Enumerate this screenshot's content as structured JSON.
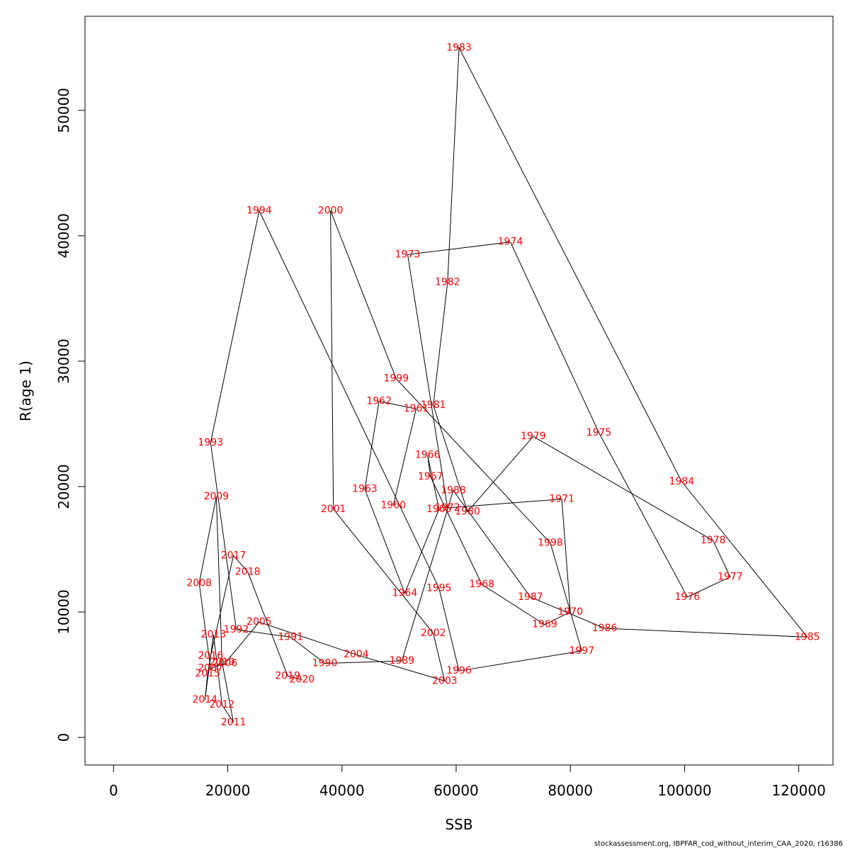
{
  "chart_data": {
    "type": "line",
    "title": "",
    "xlabel": "SSB",
    "ylabel": "R(age 1)",
    "xlim": [
      -5000,
      126000
    ],
    "ylim": [
      -2200,
      57500
    ],
    "xticks": [
      0,
      20000,
      40000,
      60000,
      80000,
      100000,
      120000
    ],
    "yticks": [
      0,
      10000,
      20000,
      30000,
      40000,
      50000
    ],
    "xtick_labels": [
      "0",
      "20000",
      "40000",
      "60000",
      "80000",
      "100000",
      "120000"
    ],
    "ytick_labels": [
      "0",
      "10000",
      "20000",
      "30000",
      "40000",
      "50000"
    ],
    "grid": false,
    "line_color": "#000000",
    "label_color": "#ff0000",
    "points": [
      {
        "year": "1960",
        "x": 49000,
        "y": 18500
      },
      {
        "year": "1961",
        "x": 53000,
        "y": 26200
      },
      {
        "year": "1962",
        "x": 46500,
        "y": 26800
      },
      {
        "year": "1963",
        "x": 44000,
        "y": 19800
      },
      {
        "year": "1964",
        "x": 51000,
        "y": 11500
      },
      {
        "year": "1965",
        "x": 57000,
        "y": 18200
      },
      {
        "year": "1966",
        "x": 55000,
        "y": 22500
      },
      {
        "year": "1967",
        "x": 55500,
        "y": 20800
      },
      {
        "year": "1968",
        "x": 64500,
        "y": 12200
      },
      {
        "year": "1969",
        "x": 75500,
        "y": 9000
      },
      {
        "year": "1970",
        "x": 80000,
        "y": 10000
      },
      {
        "year": "1971",
        "x": 78500,
        "y": 19000
      },
      {
        "year": "1972",
        "x": 58500,
        "y": 18300
      },
      {
        "year": "1973",
        "x": 51500,
        "y": 38500
      },
      {
        "year": "1974",
        "x": 69500,
        "y": 39500
      },
      {
        "year": "1975",
        "x": 85000,
        "y": 24300
      },
      {
        "year": "1976",
        "x": 100500,
        "y": 11200
      },
      {
        "year": "1977",
        "x": 108000,
        "y": 12800
      },
      {
        "year": "1978",
        "x": 105000,
        "y": 15700
      },
      {
        "year": "1979",
        "x": 73500,
        "y": 24000
      },
      {
        "year": "1980",
        "x": 62000,
        "y": 18000
      },
      {
        "year": "1981",
        "x": 56000,
        "y": 26500
      },
      {
        "year": "1982",
        "x": 58500,
        "y": 36300
      },
      {
        "year": "1983",
        "x": 60500,
        "y": 55000
      },
      {
        "year": "1984",
        "x": 99500,
        "y": 20400
      },
      {
        "year": "1985",
        "x": 121500,
        "y": 8000
      },
      {
        "year": "1986",
        "x": 86000,
        "y": 8700
      },
      {
        "year": "1987",
        "x": 73000,
        "y": 11200
      },
      {
        "year": "1988",
        "x": 59500,
        "y": 19700
      },
      {
        "year": "1989",
        "x": 50500,
        "y": 6100
      },
      {
        "year": "1990",
        "x": 37000,
        "y": 5900
      },
      {
        "year": "1991",
        "x": 31000,
        "y": 8000
      },
      {
        "year": "1992",
        "x": 21500,
        "y": 8600
      },
      {
        "year": "1993",
        "x": 17000,
        "y": 23500
      },
      {
        "year": "1994",
        "x": 25500,
        "y": 42000
      },
      {
        "year": "1995",
        "x": 57000,
        "y": 11900
      },
      {
        "year": "1996",
        "x": 60500,
        "y": 5300
      },
      {
        "year": "1997",
        "x": 82000,
        "y": 6900
      },
      {
        "year": "1998",
        "x": 76500,
        "y": 15500
      },
      {
        "year": "1999",
        "x": 49500,
        "y": 28600
      },
      {
        "year": "2000",
        "x": 38000,
        "y": 42000
      },
      {
        "year": "2001",
        "x": 38500,
        "y": 18200
      },
      {
        "year": "2002",
        "x": 56000,
        "y": 8300
      },
      {
        "year": "2003",
        "x": 58000,
        "y": 4500
      },
      {
        "year": "2004",
        "x": 42500,
        "y": 6600
      },
      {
        "year": "2005",
        "x": 25500,
        "y": 9200
      },
      {
        "year": "2006",
        "x": 19500,
        "y": 5900
      },
      {
        "year": "2007",
        "x": 17000,
        "y": 5500
      },
      {
        "year": "2008",
        "x": 15000,
        "y": 12300
      },
      {
        "year": "2009",
        "x": 18000,
        "y": 19200
      },
      {
        "year": "2010",
        "x": 19000,
        "y": 6000
      },
      {
        "year": "2011",
        "x": 21000,
        "y": 1200
      },
      {
        "year": "2012",
        "x": 19000,
        "y": 2600
      },
      {
        "year": "2013",
        "x": 17500,
        "y": 8200
      },
      {
        "year": "2014",
        "x": 16000,
        "y": 3000
      },
      {
        "year": "2015",
        "x": 16500,
        "y": 5100
      },
      {
        "year": "2016",
        "x": 17000,
        "y": 6500
      },
      {
        "year": "2017",
        "x": 21000,
        "y": 14500
      },
      {
        "year": "2018",
        "x": 23500,
        "y": 13200
      },
      {
        "year": "2019",
        "x": 30500,
        "y": 4900
      },
      {
        "year": "2020",
        "x": 33000,
        "y": 4600
      }
    ]
  },
  "footer": "stockassessment.org, IBPFAR_cod_without_interim_CAA_2020, r16386"
}
